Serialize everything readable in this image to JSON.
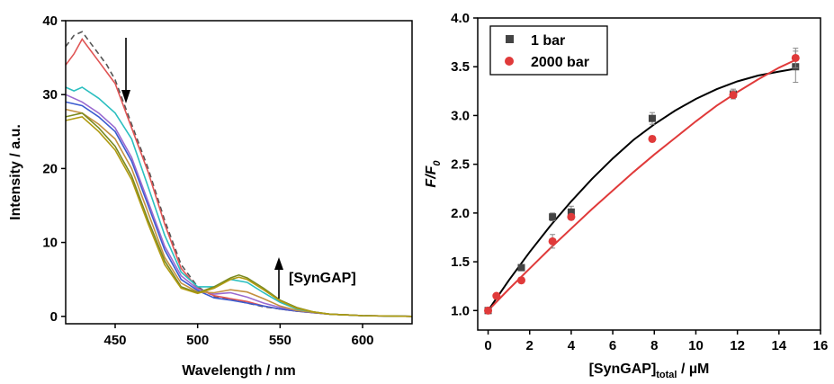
{
  "chart_data": [
    {
      "type": "line",
      "xlabel": "Wavelength / nm",
      "ylabel": "Intensity / a.u.",
      "xlim": [
        420,
        630
      ],
      "ylim": [
        -1,
        40
      ],
      "x_ticks": [
        450,
        500,
        550,
        600
      ],
      "y_ticks": [
        0,
        10,
        20,
        30,
        40
      ],
      "annotation": "[SynGAP]",
      "series": [
        {
          "color": "#555555",
          "dashed": true,
          "x": [
            420,
            425,
            430,
            435,
            440,
            445,
            450,
            460,
            470,
            480,
            490,
            500,
            510,
            520,
            530,
            540,
            550,
            560,
            570,
            580,
            600,
            630
          ],
          "y": [
            36.5,
            38,
            38.5,
            37,
            35.5,
            34,
            32,
            26,
            20,
            13,
            7,
            4,
            2.7,
            2.3,
            1.8,
            1.3,
            1,
            0.7,
            0.5,
            0.3,
            0.1,
            0
          ]
        },
        {
          "color": "#e05555",
          "x": [
            420,
            425,
            430,
            435,
            440,
            445,
            450,
            460,
            470,
            480,
            490,
            500,
            510,
            520,
            530,
            540,
            550,
            560,
            570,
            580,
            600,
            630
          ],
          "y": [
            34,
            35.5,
            37.5,
            36,
            34.5,
            33,
            31.5,
            25.5,
            19.5,
            12.5,
            6.5,
            3.8,
            2.8,
            2.4,
            2,
            1.4,
            1,
            0.7,
            0.5,
            0.3,
            0.1,
            0
          ]
        },
        {
          "color": "#3a5bd0",
          "x": [
            420,
            430,
            440,
            450,
            460,
            470,
            480,
            490,
            500,
            510,
            520,
            530,
            540,
            550,
            560,
            580,
            600,
            630
          ],
          "y": [
            29,
            28.5,
            27,
            25,
            21,
            15,
            9,
            5,
            3.5,
            2.5,
            2.2,
            1.8,
            1.4,
            1,
            0.7,
            0.3,
            0.1,
            0
          ]
        },
        {
          "color": "#9a6ad0",
          "x": [
            420,
            430,
            440,
            450,
            460,
            470,
            480,
            490,
            500,
            510,
            520,
            530,
            540,
            550,
            560,
            580,
            600,
            630
          ],
          "y": [
            30,
            29,
            27.5,
            25.5,
            21.5,
            15.5,
            9.5,
            5.5,
            3.7,
            3,
            3.2,
            2.6,
            1.8,
            1.2,
            0.8,
            0.3,
            0.1,
            0
          ]
        },
        {
          "color": "#c49040",
          "x": [
            420,
            430,
            440,
            450,
            460,
            470,
            480,
            490,
            500,
            510,
            520,
            530,
            540,
            550,
            560,
            580,
            600,
            630
          ],
          "y": [
            28,
            27.5,
            26,
            24,
            20,
            14,
            8,
            4.5,
            3.3,
            3.2,
            3.6,
            3.3,
            2.4,
            1.4,
            0.8,
            0.3,
            0.1,
            0
          ]
        },
        {
          "color": "#2bbfc0",
          "x": [
            420,
            425,
            430,
            440,
            450,
            460,
            470,
            480,
            490,
            500,
            510,
            520,
            530,
            540,
            550,
            560,
            570,
            580,
            600,
            630
          ],
          "y": [
            31,
            30.5,
            31,
            29.5,
            27.5,
            24,
            17.5,
            11,
            6,
            4,
            4,
            5,
            4.6,
            3.2,
            1.9,
            1,
            0.6,
            0.3,
            0.1,
            0
          ]
        },
        {
          "color": "#7a8a20",
          "x": [
            420,
            430,
            440,
            450,
            460,
            470,
            480,
            490,
            500,
            510,
            520,
            525,
            530,
            540,
            550,
            560,
            570,
            580,
            600,
            630
          ],
          "y": [
            27,
            27.5,
            25.5,
            23,
            19,
            13,
            7.5,
            4,
            3.2,
            4,
            5.2,
            5.6,
            5.2,
            3.8,
            2.2,
            1.2,
            0.6,
            0.3,
            0.1,
            0
          ]
        },
        {
          "color": "#b09a10",
          "x": [
            420,
            430,
            440,
            450,
            460,
            470,
            480,
            490,
            500,
            510,
            520,
            525,
            530,
            540,
            550,
            560,
            570,
            580,
            600,
            630
          ],
          "y": [
            26.5,
            27,
            25,
            22.5,
            18.5,
            12.5,
            7,
            3.8,
            3.1,
            3.8,
            5,
            5.3,
            5,
            3.6,
            2.1,
            1.1,
            0.6,
            0.3,
            0.1,
            0
          ]
        }
      ]
    },
    {
      "type": "scatter",
      "xlabel": "[SynGAP]",
      "xlabel_sub": "total",
      "xlabel_unit": " / µM",
      "ylabel": "F/F",
      "ylabel_sub": "0",
      "xlim": [
        -0.5,
        16
      ],
      "ylim": [
        0.8,
        4.0
      ],
      "x_ticks": [
        0,
        2,
        4,
        6,
        8,
        10,
        12,
        14,
        16
      ],
      "y_ticks": [
        "1.0",
        "1.5",
        "2.0",
        "2.5",
        "3.0",
        "3.5",
        "4.0"
      ],
      "legend_position": "top-left",
      "series": [
        {
          "name": "1 bar",
          "color": "#444444",
          "marker": "square",
          "x": [
            0,
            1.6,
            3.1,
            4.0,
            7.9,
            11.8,
            14.8
          ],
          "y": [
            1.0,
            1.44,
            1.96,
            2.01,
            2.97,
            3.22,
            3.5
          ],
          "err": [
            0.03,
            0.03,
            0.04,
            0.06,
            0.06,
            0.05,
            0.16
          ],
          "fit": [
            [
              0,
              1.0
            ],
            [
              1,
              1.31
            ],
            [
              2,
              1.6
            ],
            [
              3,
              1.87
            ],
            [
              4,
              2.12
            ],
            [
              5,
              2.35
            ],
            [
              6,
              2.56
            ],
            [
              7,
              2.75
            ],
            [
              8,
              2.91
            ],
            [
              9,
              3.05
            ],
            [
              10,
              3.17
            ],
            [
              11,
              3.27
            ],
            [
              12,
              3.35
            ],
            [
              13,
              3.41
            ],
            [
              14,
              3.45
            ],
            [
              14.8,
              3.48
            ]
          ]
        },
        {
          "name": "2000 bar",
          "color": "#e03a3a",
          "marker": "circle",
          "x": [
            0,
            0.4,
            1.6,
            3.1,
            4.0,
            7.9,
            11.8,
            14.8
          ],
          "y": [
            1.0,
            1.15,
            1.31,
            1.71,
            1.96,
            2.76,
            3.21,
            3.59
          ],
          "err": [
            0.02,
            0.02,
            0.03,
            0.07,
            0.03,
            0.03,
            0.04,
            0.1
          ],
          "fit": [
            [
              0,
              1.0
            ],
            [
              1,
              1.22
            ],
            [
              2,
              1.43
            ],
            [
              3,
              1.64
            ],
            [
              4,
              1.84
            ],
            [
              5,
              2.04
            ],
            [
              6,
              2.23
            ],
            [
              7,
              2.42
            ],
            [
              8,
              2.6
            ],
            [
              9,
              2.77
            ],
            [
              10,
              2.94
            ],
            [
              11,
              3.1
            ],
            [
              12,
              3.24
            ],
            [
              13,
              3.37
            ],
            [
              14,
              3.49
            ],
            [
              14.8,
              3.57
            ]
          ]
        }
      ]
    }
  ]
}
